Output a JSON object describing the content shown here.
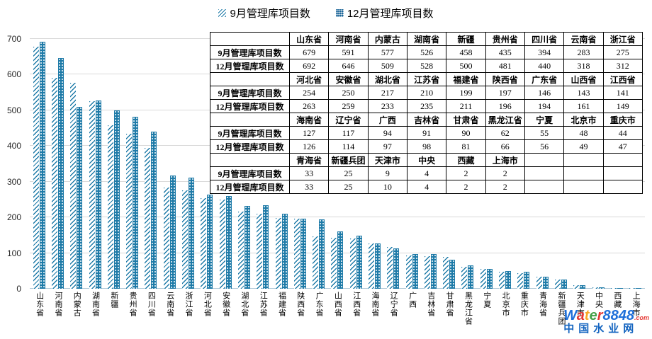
{
  "chart_data": {
    "type": "bar",
    "title": "",
    "xlabel": "",
    "ylabel": "",
    "ylim": [
      0,
      700
    ],
    "yticks": [
      0,
      100,
      200,
      300,
      400,
      500,
      600,
      700
    ],
    "grid": true,
    "legend_position": "top-center",
    "bar_color": "#1F7BA8",
    "categories": [
      "山东省",
      "河南省",
      "内蒙古",
      "湖南省",
      "新疆",
      "贵州省",
      "四川省",
      "云南省",
      "浙江省",
      "河北省",
      "安徽省",
      "湖北省",
      "江苏省",
      "福建省",
      "陕西省",
      "广东省",
      "山西省",
      "江西省",
      "海南省",
      "辽宁省",
      "广西",
      "吉林省",
      "甘肃省",
      "黑龙江省",
      "宁夏",
      "北京市",
      "重庆市",
      "青海省",
      "新疆兵团",
      "天津市",
      "中央",
      "西藏",
      "上海市"
    ],
    "series": [
      {
        "name": "9月管理库项目数",
        "values": [
          679,
          591,
          577,
          526,
          458,
          435,
          394,
          283,
          275,
          254,
          250,
          217,
          210,
          199,
          197,
          146,
          143,
          141,
          127,
          117,
          94,
          91,
          90,
          62,
          55,
          48,
          44,
          33,
          25,
          9,
          4,
          2,
          2
        ]
      },
      {
        "name": "12月管理库项目数",
        "values": [
          692,
          646,
          509,
          528,
          500,
          481,
          440,
          318,
          312,
          263,
          259,
          233,
          235,
          211,
          196,
          194,
          161,
          149,
          126,
          114,
          97,
          98,
          81,
          66,
          56,
          49,
          47,
          33,
          25,
          10,
          4,
          2,
          2
        ]
      }
    ]
  },
  "table": {
    "row_labels": [
      "9月管理库项目数",
      "12月管理库项目数"
    ],
    "columns_per_block": 9,
    "blocks": [
      {
        "headers": [
          "山东省",
          "河南省",
          "内蒙古",
          "湖南省",
          "新疆",
          "贵州省",
          "四川省",
          "云南省",
          "浙江省"
        ],
        "sep": [
          679,
          591,
          577,
          526,
          458,
          435,
          394,
          283,
          275
        ],
        "dec": [
          692,
          646,
          509,
          528,
          500,
          481,
          440,
          318,
          312
        ]
      },
      {
        "headers": [
          "河北省",
          "安徽省",
          "湖北省",
          "江苏省",
          "福建省",
          "陕西省",
          "广东省",
          "山西省",
          "江西省"
        ],
        "sep": [
          254,
          250,
          217,
          210,
          199,
          197,
          146,
          143,
          141
        ],
        "dec": [
          263,
          259,
          233,
          235,
          211,
          196,
          194,
          161,
          149
        ]
      },
      {
        "headers": [
          "海南省",
          "辽宁省",
          "广西",
          "吉林省",
          "甘肃省",
          "黑龙江省",
          "宁夏",
          "北京市",
          "重庆市"
        ],
        "sep": [
          127,
          117,
          94,
          91,
          90,
          62,
          55,
          48,
          44
        ],
        "dec": [
          126,
          114,
          97,
          98,
          81,
          66,
          56,
          49,
          47
        ]
      },
      {
        "headers": [
          "青海省",
          "新疆兵团",
          "天津市",
          "中央",
          "西藏",
          "上海市"
        ],
        "sep": [
          33,
          25,
          9,
          4,
          2,
          2
        ],
        "dec": [
          33,
          25,
          10,
          4,
          2,
          2
        ]
      }
    ]
  },
  "watermark": {
    "letters": [
      {
        "ch": "W",
        "color": "#1E6FD9"
      },
      {
        "ch": "a",
        "color": "#E53935"
      },
      {
        "ch": "t",
        "color": "#F9A825"
      },
      {
        "ch": "e",
        "color": "#43A047"
      },
      {
        "ch": "r",
        "color": "#E53935"
      },
      {
        "ch": "8848",
        "color": "#1E6FD9"
      }
    ],
    "suffix": ".com",
    "line2": "中国水业网"
  }
}
